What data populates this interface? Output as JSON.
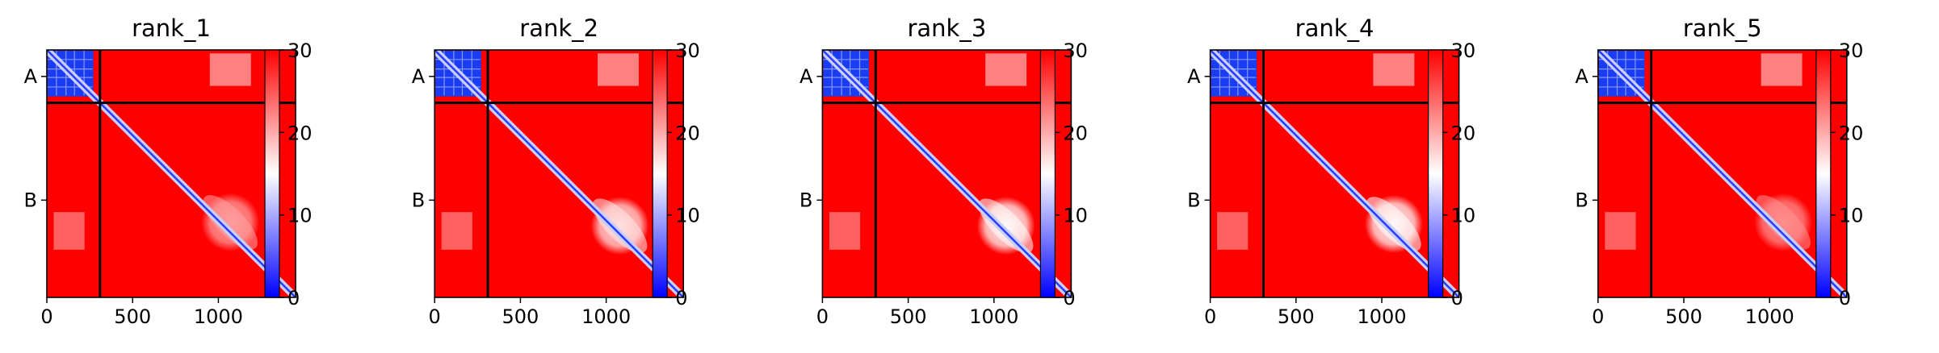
{
  "chart_data": {
    "type": "heatmap",
    "colormap": {
      "name": "bwr",
      "low": "#0000ff",
      "mid": "#ffffff",
      "high": "#ff0000"
    },
    "colorbar": {
      "range": [
        0,
        30
      ],
      "ticks": [
        "0",
        "10",
        "20",
        "30"
      ]
    },
    "x_range": [
      0,
      1450
    ],
    "y_range": [
      0,
      1450
    ],
    "x_ticks": [
      {
        "value": 0,
        "label": "0"
      },
      {
        "value": 500,
        "label": "500"
      },
      {
        "value": 1000,
        "label": "1000"
      }
    ],
    "chain_boundary": 310,
    "y_ticks": [
      {
        "value": 155,
        "label": "A"
      },
      {
        "value": 880,
        "label": "B"
      }
    ],
    "panels": [
      {
        "title": "rank_1",
        "lobe_center": [
          1070,
          1010
        ],
        "lobe_value": 22
      },
      {
        "title": "rank_2",
        "lobe_center": [
          1080,
          1030
        ],
        "lobe_value": 18
      },
      {
        "title": "rank_3",
        "lobe_center": [
          1070,
          1030
        ],
        "lobe_value": 15
      },
      {
        "title": "rank_4",
        "lobe_center": [
          1070,
          1020
        ],
        "lobe_value": 13
      },
      {
        "title": "rank_5",
        "lobe_center": [
          1080,
          1010
        ],
        "lobe_value": 23
      }
    ]
  }
}
